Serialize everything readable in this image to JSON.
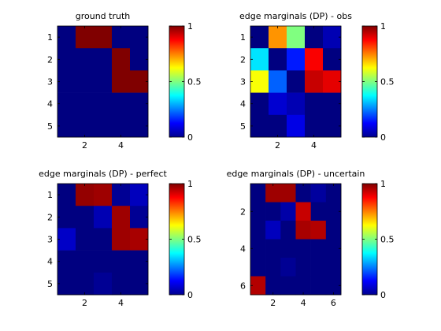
{
  "colormap": "jet",
  "chart_data": [
    {
      "type": "heatmap",
      "title": "ground truth",
      "rows": 5,
      "cols": 5,
      "x_ticks": [
        2,
        4
      ],
      "y_ticks": [
        1,
        2,
        3,
        4,
        5
      ],
      "values": [
        [
          0.0,
          1.0,
          1.0,
          0.0,
          0.0
        ],
        [
          0.0,
          0.0,
          0.0,
          1.0,
          0.0
        ],
        [
          0.0,
          0.0,
          0.0,
          1.0,
          1.0
        ],
        [
          0.0,
          0.0,
          0.0,
          0.0,
          0.0
        ],
        [
          0.0,
          0.0,
          0.0,
          0.0,
          0.0
        ]
      ],
      "colorbar": {
        "range": [
          0,
          1
        ],
        "ticks": [
          "0",
          "0.5",
          "1"
        ]
      }
    },
    {
      "type": "heatmap",
      "title": "edge marginals (DP) - obs",
      "rows": 5,
      "cols": 5,
      "x_ticks": [
        2,
        4
      ],
      "y_ticks": [
        1,
        2,
        3,
        4,
        5
      ],
      "values": [
        [
          0.0,
          0.73,
          0.5,
          0.0,
          0.05
        ],
        [
          0.35,
          0.0,
          0.15,
          0.88,
          0.0
        ],
        [
          0.62,
          0.22,
          0.0,
          0.93,
          0.9
        ],
        [
          0.0,
          0.08,
          0.05,
          0.0,
          0.0
        ],
        [
          0.0,
          0.0,
          0.1,
          0.0,
          0.0
        ]
      ],
      "colorbar": {
        "range": [
          0,
          1
        ],
        "ticks": [
          "0",
          "0.5",
          "1"
        ]
      }
    },
    {
      "type": "heatmap",
      "title": "edge marginals (DP) - perfect",
      "rows": 5,
      "cols": 5,
      "x_ticks": [
        2,
        4
      ],
      "y_ticks": [
        1,
        2,
        3,
        4,
        5
      ],
      "values": [
        [
          0.0,
          0.98,
          0.97,
          0.02,
          0.06
        ],
        [
          0.0,
          0.0,
          0.05,
          0.97,
          0.02
        ],
        [
          0.07,
          0.0,
          0.0,
          0.97,
          0.96
        ],
        [
          0.0,
          0.0,
          0.0,
          0.0,
          0.0
        ],
        [
          0.0,
          0.0,
          0.02,
          0.0,
          0.0
        ]
      ],
      "colorbar": {
        "range": [
          0,
          1
        ],
        "ticks": [
          "0",
          "0.5",
          "1"
        ]
      }
    },
    {
      "type": "heatmap",
      "title": "edge marginals (DP) - uncertain",
      "rows": 6,
      "cols": 6,
      "x_ticks": [
        2,
        4,
        6
      ],
      "y_ticks": [
        2,
        4,
        6
      ],
      "values": [
        [
          0.0,
          0.97,
          0.97,
          0.0,
          0.03,
          0.0
        ],
        [
          0.0,
          0.0,
          0.04,
          0.93,
          0.0,
          0.0
        ],
        [
          0.0,
          0.06,
          0.0,
          0.96,
          0.95,
          0.0
        ],
        [
          0.0,
          0.0,
          0.0,
          0.0,
          0.0,
          0.0
        ],
        [
          0.0,
          0.0,
          0.02,
          0.0,
          0.0,
          0.0
        ],
        [
          0.95,
          0.0,
          0.0,
          0.0,
          0.0,
          0.0
        ]
      ],
      "colorbar": {
        "range": [
          0,
          1
        ],
        "ticks": [
          "0",
          "0.5",
          "1"
        ]
      }
    }
  ]
}
